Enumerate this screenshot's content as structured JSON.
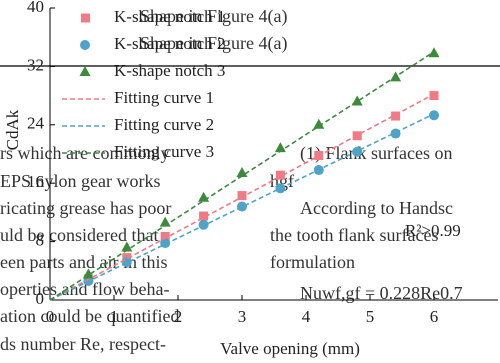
{
  "chart_data": {
    "type": "scatter",
    "xlabel": "Valve opening (mm)",
    "ylabel": "CdAk",
    "xlim": [
      0,
      7
    ],
    "xticks": [
      0,
      1,
      2,
      3,
      4,
      5,
      6
    ],
    "ylim": [
      0,
      40
    ],
    "yticks": [
      0,
      8,
      16,
      24,
      32,
      40
    ],
    "annotation": "R²>0.99",
    "series": [
      {
        "name": "K-shape notch 1",
        "color": "#f07a86",
        "marker": "square",
        "x": [
          0.6,
          1.2,
          1.8,
          2.4,
          3.0,
          3.6,
          4.2,
          4.8,
          5.4,
          6.0
        ],
        "values": [
          2.9,
          5.8,
          8.7,
          11.5,
          14.3,
          17.1,
          19.8,
          22.5,
          25.2,
          28.0
        ]
      },
      {
        "name": "K-shape notch 2",
        "color": "#4fa3c6",
        "marker": "circle",
        "x": [
          0.6,
          1.2,
          1.8,
          2.4,
          3.0,
          3.6,
          4.2,
          4.8,
          5.4,
          6.0
        ],
        "values": [
          2.6,
          5.2,
          7.8,
          10.3,
          12.8,
          15.3,
          17.8,
          20.3,
          22.8,
          25.3
        ]
      },
      {
        "name": "K-shape notch 3",
        "color": "#3d8a3d",
        "marker": "triangle",
        "x": [
          0.6,
          1.2,
          1.8,
          2.4,
          3.0,
          3.6,
          4.2,
          4.8,
          5.4,
          6.0
        ],
        "values": [
          3.5,
          7.2,
          10.6,
          14.0,
          17.4,
          20.8,
          24.0,
          27.2,
          30.5,
          33.8
        ]
      },
      {
        "name": "Fitting curve 1",
        "color": "#f07a86",
        "marker": "dashed",
        "x": [
          0,
          6.0
        ],
        "values": [
          0,
          28.2
        ]
      },
      {
        "name": "Fitting curve 2",
        "color": "#4fa3c6",
        "marker": "dashed",
        "x": [
          0,
          6.0
        ],
        "values": [
          0,
          25.5
        ]
      },
      {
        "name": "Fitting curve 3",
        "color": "#3d8a3d",
        "marker": "dashed",
        "x": [
          0,
          6.0
        ],
        "values": [
          0,
          34.0
        ]
      }
    ]
  },
  "document": {
    "lines": [
      "rs which are commonly",
      "EPS nylon gear works",
      "ricating grease has poor",
      "uld be considered that",
      "een parts and air in this",
      "operties and flow beha-",
      "ation could be quantified",
      "ds number Re, respect-",
      "(1) Flank surfaces on",
      "hgf",
      "According to Handsc",
      "the tooth flank surfaces",
      "formulation",
      "Nuwf,gf = 0.228Re0.7",
      "Shape in Figure 4(a)",
      "Shape in Figure 4(a)"
    ]
  }
}
